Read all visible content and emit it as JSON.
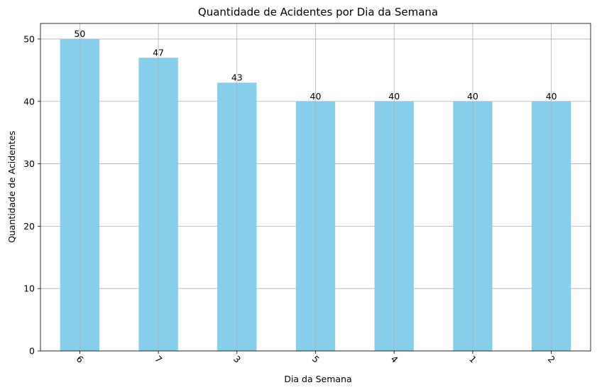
{
  "chart_data": {
    "type": "bar",
    "title": "Quantidade de Acidentes por Dia da Semana",
    "xlabel": "Dia da Semana",
    "ylabel": "Quantidade de Acidentes",
    "categories": [
      "6",
      "7",
      "3",
      "5",
      "4",
      "1",
      "2"
    ],
    "values": [
      50,
      47,
      43,
      40,
      40,
      40,
      40
    ],
    "data_labels": [
      "50",
      "47",
      "43",
      "40",
      "40",
      "40",
      "40"
    ],
    "ylim": [
      0,
      52.5
    ],
    "yticks": [
      0,
      10,
      20,
      30,
      40,
      50
    ],
    "ytick_labels": [
      "0",
      "10",
      "20",
      "30",
      "40",
      "50"
    ],
    "x_tick_rotation_deg": 45,
    "grid": true,
    "bar_color": "#87ceeb",
    "grid_color": "#b0b0b0"
  }
}
